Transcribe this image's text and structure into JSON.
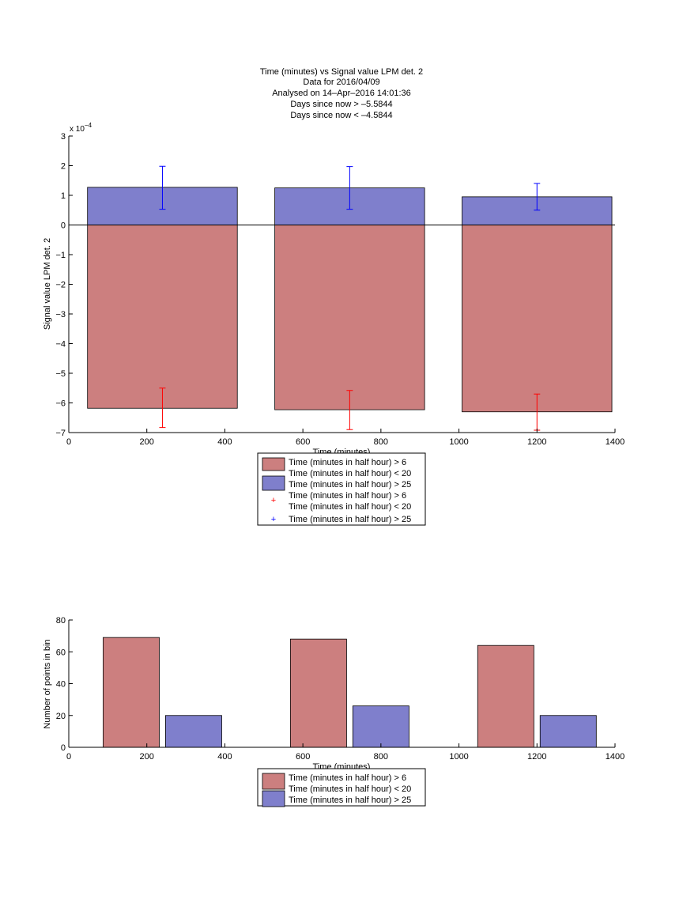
{
  "chart_data": [
    {
      "type": "bar",
      "title_lines": [
        "Time (minutes) vs Signal value LPM det. 2",
        "Data for 2016/04/09",
        "Analysed on 14–Apr–2016 14:01:36",
        "Days since now > –5.5844",
        "Days since now < –4.5844"
      ],
      "xlabel": "Time (minutes)",
      "ylabel": "Signal value LPM det. 2",
      "y_exponent_label": "x 10",
      "y_exponent": "−4",
      "xlim": [
        0,
        1400
      ],
      "ylim": [
        -7,
        3
      ],
      "xticks": [
        0,
        200,
        400,
        600,
        800,
        1000,
        1200,
        1400
      ],
      "yticks": [
        -7,
        -6,
        -5,
        -4,
        -3,
        -2,
        -1,
        0,
        1,
        2,
        3
      ],
      "ytick_labels": [
        "−7",
        "−6",
        "−5",
        "−4",
        "−3",
        "−2",
        "−1",
        "0",
        "1",
        "2",
        "3"
      ],
      "bar_ranges": [
        [
          48,
          432
        ],
        [
          528,
          912
        ],
        [
          1008,
          1392
        ]
      ],
      "series": [
        {
          "name": "Time (minutes in half hour) > 6\nTime (minutes in half hour) < 20",
          "color": "#cc7f7f",
          "values": [
            -6.18,
            -6.23,
            -6.3
          ],
          "error_x": [
            240,
            720,
            1200
          ],
          "error_low": [
            -6.83,
            -6.9,
            -6.92
          ],
          "error_high": [
            -5.5,
            -5.58,
            -5.7
          ],
          "error_color": "#ff0000"
        },
        {
          "name": "Time (minutes in half hour) > 25",
          "color": "#7f7fcc",
          "values": [
            1.27,
            1.25,
            0.95
          ],
          "error_x": [
            240,
            720,
            1200
          ],
          "error_low": [
            0.53,
            0.53,
            0.5
          ],
          "error_high": [
            1.98,
            1.97,
            1.4
          ],
          "error_color": "#0000ff"
        }
      ],
      "legend_entries": [
        "Time (minutes in half hour) > 6",
        "Time (minutes in half hour) < 20",
        "Time (minutes in half hour) > 25",
        "Time (minutes in half hour) > 6",
        "Time (minutes in half hour) < 20",
        "Time (minutes in half hour) > 25"
      ],
      "legend_placement": "below"
    },
    {
      "type": "bar",
      "xlabel": "Time (minutes)",
      "ylabel": "Number of points in bin",
      "xlim": [
        0,
        1400
      ],
      "ylim": [
        0,
        80
      ],
      "xticks": [
        0,
        200,
        400,
        600,
        800,
        1000,
        1200,
        1400
      ],
      "yticks": [
        0,
        20,
        40,
        60,
        80
      ],
      "series": [
        {
          "name": "Time (minutes in half hour) > 6\nTime (minutes in half hour) < 20",
          "color": "#cc7f7f",
          "bar_ranges": [
            [
              88,
              232
            ],
            [
              568,
              712
            ],
            [
              1048,
              1192
            ]
          ],
          "values": [
            69,
            68,
            64
          ]
        },
        {
          "name": "Time (minutes in half hour) > 25",
          "color": "#7f7fcc",
          "bar_ranges": [
            [
              248,
              392
            ],
            [
              728,
              872
            ],
            [
              1208,
              1352
            ]
          ],
          "values": [
            20,
            26,
            20
          ]
        }
      ],
      "legend_entries": [
        "Time (minutes in half hour) > 6",
        "Time (minutes in half hour) < 20",
        "Time (minutes in half hour) > 25"
      ],
      "legend_placement": "below"
    }
  ]
}
